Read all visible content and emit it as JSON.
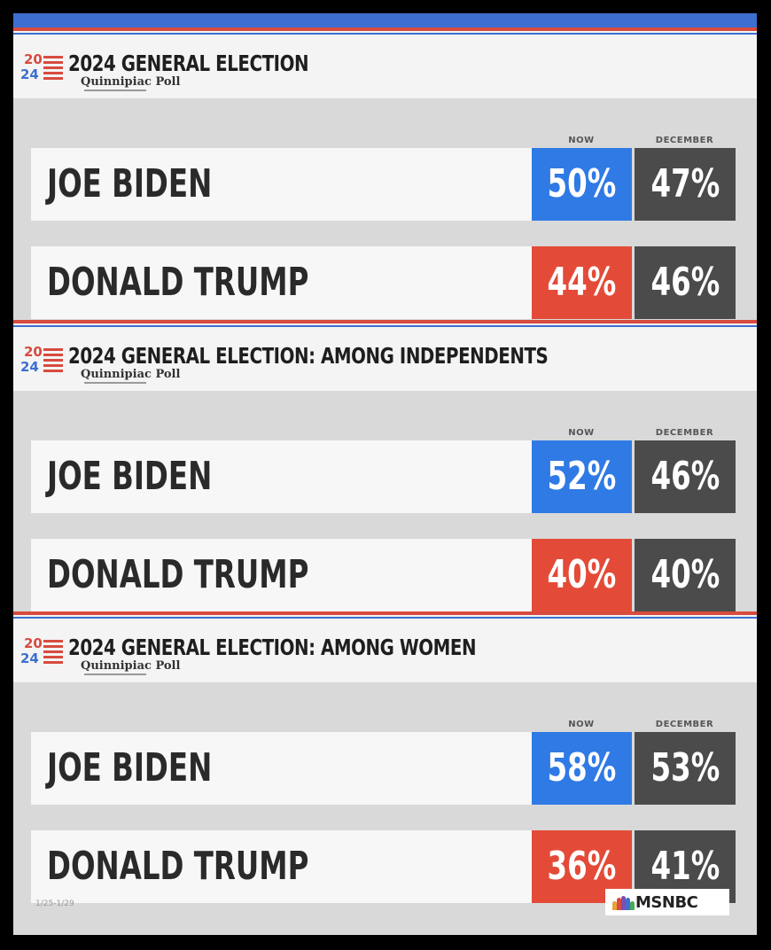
{
  "brand": {
    "logo_year_top": "20",
    "logo_year_bottom": "24",
    "pollster": "Quinnipiac Poll",
    "network": "MSNBC",
    "footnote": "1/25-1/29",
    "colors": {
      "biden": "#2f7ae5",
      "trump": "#e34b38",
      "december": "#4b4b4b"
    }
  },
  "chart_data": [
    {
      "type": "table",
      "title": "2024 GENERAL ELECTION",
      "columns": [
        "NOW",
        "DECEMBER"
      ],
      "rows": [
        {
          "name": "JOE BIDEN",
          "now": "50%",
          "december": "47%"
        },
        {
          "name": "DONALD TRUMP",
          "now": "44%",
          "december": "46%"
        }
      ]
    },
    {
      "type": "table",
      "title": "2024 GENERAL ELECTION: AMONG INDEPENDENTS",
      "columns": [
        "NOW",
        "DECEMBER"
      ],
      "rows": [
        {
          "name": "JOE BIDEN",
          "now": "52%",
          "december": "46%"
        },
        {
          "name": "DONALD TRUMP",
          "now": "40%",
          "december": "40%"
        }
      ]
    },
    {
      "type": "table",
      "title": "2024 GENERAL ELECTION: AMONG WOMEN",
      "columns": [
        "NOW",
        "DECEMBER"
      ],
      "rows": [
        {
          "name": "JOE BIDEN",
          "now": "58%",
          "december": "53%"
        },
        {
          "name": "DONALD TRUMP",
          "now": "36%",
          "december": "41%"
        }
      ]
    }
  ]
}
